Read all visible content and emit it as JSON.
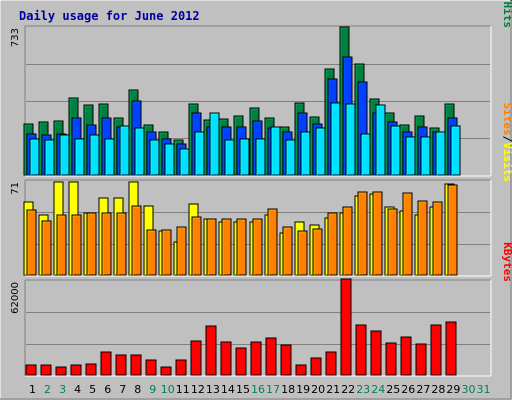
{
  "chart_data": {
    "type": "bar",
    "title": "Daily usage for June 2012",
    "colors": {
      "background": "#c0c0c0",
      "plot_background": "#c0c0c0",
      "title": "#0000a0",
      "hits": "#008040",
      "files": "#0040ff",
      "pages": "#00e0ff",
      "visits": "#ffff00",
      "sites": "#ff8000",
      "kbytes": "#ff0000",
      "weekday_label": "#000000",
      "weekend_label": "#00805a"
    },
    "days": [
      "1",
      "2",
      "3",
      "4",
      "5",
      "6",
      "7",
      "8",
      "9",
      "10",
      "11",
      "12",
      "13",
      "14",
      "15",
      "16",
      "17",
      "18",
      "19",
      "20",
      "21",
      "22",
      "23",
      "24",
      "25",
      "26",
      "27",
      "28",
      "29",
      "30",
      "31"
    ],
    "weekend_days": [
      "2",
      "3",
      "9",
      "10",
      "16",
      "17",
      "23",
      "24",
      "30",
      "31"
    ],
    "panels": [
      {
        "name": "hits-files-pages",
        "max_label": "733",
        "scale": "log",
        "ymin": 5,
        "ymax": 733,
        "grid": true,
        "legend": [
          {
            "label": "Hits",
            "color": "#008040"
          },
          {
            "label": "Files",
            "color": "#0040ff"
          },
          {
            "label": "Pages",
            "color": "#00e0ff"
          }
        ],
        "legend_separator": "/",
        "series": [
          {
            "name": "Hits",
            "color": "#008040",
            "values": [
              28,
              30,
              31,
              66,
              53,
              55,
              34,
              88,
              27,
              21,
              16,
              54,
              32,
              33,
              36,
              48,
              34,
              25,
              57,
              35,
              181,
              722,
              212,
              65,
              40,
              27,
              37,
              24,
              54,
              null
            ]
          },
          {
            "name": "Files",
            "color": "#0040ff",
            "values": [
              20,
              19,
              20,
              34,
              27,
              34,
              25,
              61,
              21,
              17,
              14,
              40,
              25,
              25,
              25,
              31,
              24,
              21,
              40,
              28,
              127,
              270,
              116,
              41,
              30,
              21,
              25,
              21,
              34,
              null
            ]
          },
          {
            "name": "Pages",
            "color": "#00e0ff",
            "values": [
              17,
              16,
              19,
              17,
              19,
              17,
              26,
              24,
              16,
              14,
              12,
              21,
              40,
              16,
              17,
              17,
              25,
              16,
              21,
              24,
              56,
              55,
              20,
              53,
              26,
              18,
              18,
              21,
              26,
              null
            ]
          }
        ]
      },
      {
        "name": "visits-sites",
        "max_label": "71",
        "scale": "linear",
        "ymin": 0,
        "ymax": 71,
        "grid": true,
        "legend": [
          {
            "label": "Visits",
            "color": "#ffff00"
          },
          {
            "label": "Sites",
            "color": "#ff8000"
          }
        ],
        "legend_separator": "/",
        "series": [
          {
            "name": "Visits",
            "color": "#ffff00",
            "values": [
              55,
              45,
              70,
              70,
              47,
              58,
              58,
              70,
              52,
              33,
              25,
              54,
              42,
              40,
              40,
              40,
              45,
              32,
              40,
              38,
              43,
              47,
              60,
              61,
              51,
              48,
              45,
              51,
              69,
              null
            ]
          },
          {
            "name": "Sites",
            "color": "#ff8000",
            "values": [
              49,
              41,
              45,
              45,
              47,
              47,
              47,
              52,
              34,
              34,
              36,
              44,
              42,
              42,
              42,
              42,
              50,
              36,
              33,
              35,
              47,
              51,
              63,
              63,
              50,
              62,
              56,
              55,
              68,
              null
            ]
          }
        ]
      },
      {
        "name": "kbytes",
        "max_label": "62000",
        "scale": "linear",
        "ymin": 0,
        "ymax": 62000,
        "grid": true,
        "legend": [
          {
            "label": "KBytes",
            "color": "#ff0000"
          }
        ],
        "legend_separator": "",
        "series": [
          {
            "name": "KBytes",
            "color": "#ff0000",
            "values": [
              6300,
              6300,
              5500,
              6300,
              7000,
              15000,
              13000,
              13000,
              10000,
              5500,
              10000,
              22500,
              32000,
              22000,
              18000,
              21500,
              24500,
              20000,
              6300,
              11000,
              15500,
              63000,
              33000,
              29000,
              21000,
              25000,
              20500,
              33000,
              35000,
              null
            ]
          }
        ]
      }
    ]
  }
}
